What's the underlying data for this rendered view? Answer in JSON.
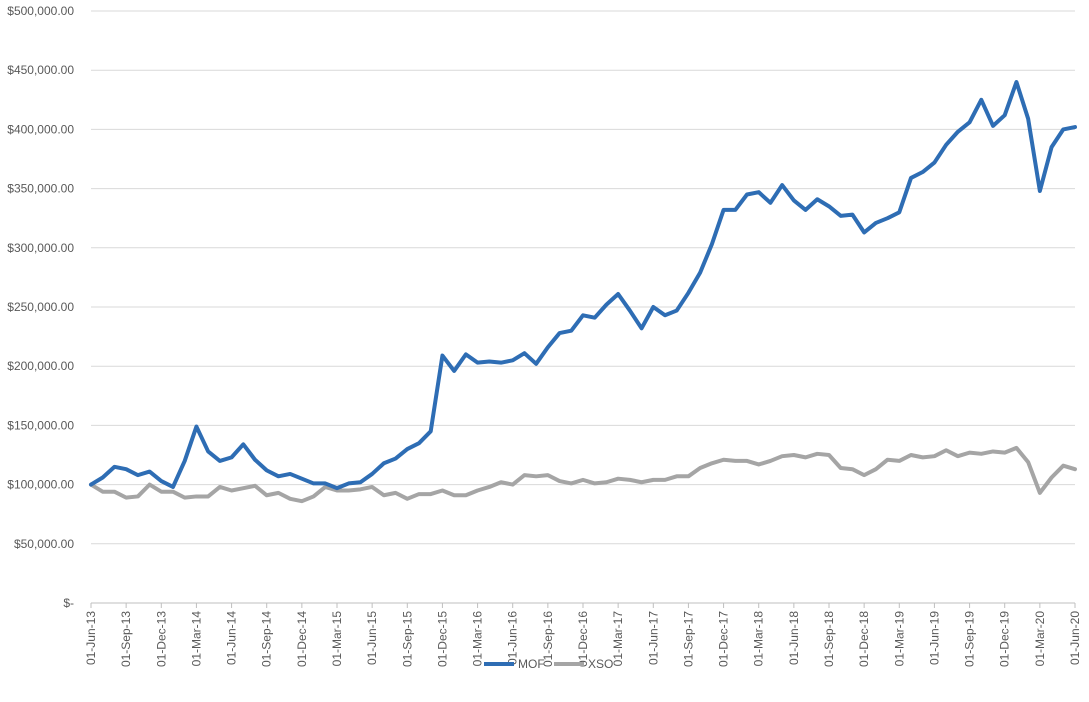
{
  "chart_data": {
    "type": "line",
    "title": "",
    "xlabel": "",
    "ylabel": "",
    "ylim": [
      0,
      500000
    ],
    "yticks": [
      {
        "value": 0,
        "label": "$-"
      },
      {
        "value": 50000,
        "label": "$50,000.00"
      },
      {
        "value": 100000,
        "label": "$100,000.00"
      },
      {
        "value": 150000,
        "label": "$150,000.00"
      },
      {
        "value": 200000,
        "label": "$200,000.00"
      },
      {
        "value": 250000,
        "label": "$250,000.00"
      },
      {
        "value": 300000,
        "label": "$300,000.00"
      },
      {
        "value": 350000,
        "label": "$350,000.00"
      },
      {
        "value": 400000,
        "label": "$400,000.00"
      },
      {
        "value": 450000,
        "label": "$450,000.00"
      },
      {
        "value": 500000,
        "label": "$500,000.00"
      }
    ],
    "xticks": [
      "01-Jun-13",
      "01-Sep-13",
      "01-Dec-13",
      "01-Mar-14",
      "01-Jun-14",
      "01-Sep-14",
      "01-Dec-14",
      "01-Mar-15",
      "01-Jun-15",
      "01-Sep-15",
      "01-Dec-15",
      "01-Mar-16",
      "01-Jun-16",
      "01-Sep-16",
      "01-Dec-16",
      "01-Mar-17",
      "01-Jun-17",
      "01-Sep-17",
      "01-Dec-17",
      "01-Mar-18",
      "01-Jun-18",
      "01-Sep-18",
      "01-Dec-18",
      "01-Mar-19",
      "01-Jun-19",
      "01-Sep-19",
      "01-Dec-19",
      "01-Mar-20",
      "01-Jun-20"
    ],
    "grid": true,
    "legend_position": "bottom",
    "series": [
      {
        "name": "MOF",
        "color": "#2E6DB4",
        "values": [
          100000,
          106000,
          115000,
          113000,
          108000,
          111000,
          103000,
          98000,
          120000,
          149000,
          128000,
          120000,
          123000,
          134000,
          121000,
          112000,
          107000,
          109000,
          105000,
          101000,
          101000,
          97000,
          101000,
          102000,
          109000,
          118000,
          122000,
          130000,
          135000,
          145000,
          209000,
          196000,
          210000,
          203000,
          204000,
          203000,
          205000,
          211000,
          202000,
          216000,
          228000,
          230000,
          243000,
          241000,
          252000,
          261000,
          247000,
          232000,
          250000,
          243000,
          247000,
          262000,
          279000,
          303000,
          332000,
          332000,
          345000,
          347000,
          338000,
          353000,
          340000,
          332000,
          341000,
          335000,
          327000,
          328000,
          313000,
          321000,
          325000,
          330000,
          359000,
          364000,
          372000,
          387000,
          398000,
          406000,
          425000,
          403000,
          412000,
          440000,
          409000,
          348000,
          385000,
          400000,
          402000
        ]
      },
      {
        "name": "XSO",
        "color": "#A5A5A5",
        "values": [
          100000,
          94000,
          94000,
          89000,
          90000,
          100000,
          94000,
          94000,
          89000,
          90000,
          90000,
          98000,
          95000,
          97000,
          99000,
          91000,
          93000,
          88000,
          86000,
          90000,
          98000,
          95000,
          95000,
          96000,
          98000,
          91000,
          93000,
          88000,
          92000,
          92000,
          95000,
          91000,
          91000,
          95000,
          98000,
          102000,
          100000,
          108000,
          107000,
          108000,
          103000,
          101000,
          104000,
          101000,
          102000,
          105000,
          104000,
          102000,
          104000,
          104000,
          107000,
          107000,
          114000,
          118000,
          121000,
          120000,
          120000,
          117000,
          120000,
          124000,
          125000,
          123000,
          126000,
          125000,
          114000,
          113000,
          108000,
          113000,
          121000,
          120000,
          125000,
          123000,
          124000,
          129000,
          124000,
          127000,
          126000,
          128000,
          127000,
          131000,
          119000,
          93000,
          106000,
          116000,
          113000
        ]
      }
    ]
  }
}
